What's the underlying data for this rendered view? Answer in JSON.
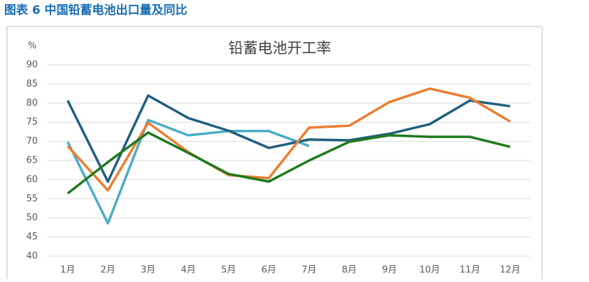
{
  "header": {
    "title": "图表 6 中国铅蓄电池出口量及同比"
  },
  "chart_data": {
    "type": "line",
    "title": "铅蓄电池开工率",
    "y_label": "%",
    "categories": [
      "1月",
      "2月",
      "3月",
      "4月",
      "5月",
      "6月",
      "7月",
      "8月",
      "9月",
      "10月",
      "11月",
      "12月"
    ],
    "series": [
      {
        "color": "#4bacc6",
        "values": [
          69.9,
          48.6,
          75.6,
          71.6,
          72.7,
          72.7,
          68.8,
          null,
          null,
          null,
          null,
          null
        ]
      },
      {
        "color": "#1f5f7f",
        "values": [
          80.7,
          59.5,
          82,
          76.1,
          72.8,
          68.3,
          70.5,
          70.3,
          72,
          74.5,
          80.7,
          79.2
        ]
      },
      {
        "color": "#ed7d31",
        "values": [
          68.8,
          57.2,
          74.9,
          67.2,
          61.2,
          60.4,
          73.6,
          74.1,
          80.3,
          83.8,
          81.4,
          75.2
        ]
      },
      {
        "color": "#1e7a1e",
        "values": [
          56.4,
          64.6,
          72.3,
          67,
          61.5,
          59.5,
          65,
          69.9,
          71.6,
          71.2,
          71.2,
          68.6
        ]
      }
    ],
    "ylim": [
      40,
      90
    ],
    "yticks": [
      40,
      45,
      50,
      55,
      60,
      65,
      70,
      75,
      80,
      85,
      90
    ],
    "grid": true
  }
}
